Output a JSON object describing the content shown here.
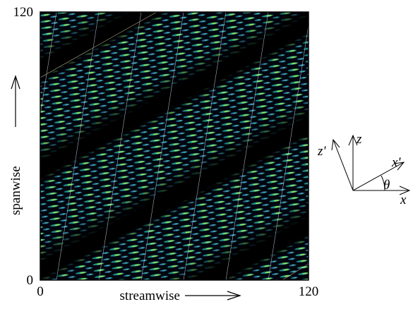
{
  "chart_data": {
    "type": "image",
    "xlabel": "streamwise",
    "ylabel": "spanwise",
    "xlim": [
      0,
      120
    ],
    "ylim": [
      0,
      120
    ],
    "xticks": [
      0,
      120
    ],
    "yticks": [
      0,
      120
    ],
    "annotations": [
      "z",
      "z'",
      "x'",
      "θ",
      "x"
    ]
  }
}
